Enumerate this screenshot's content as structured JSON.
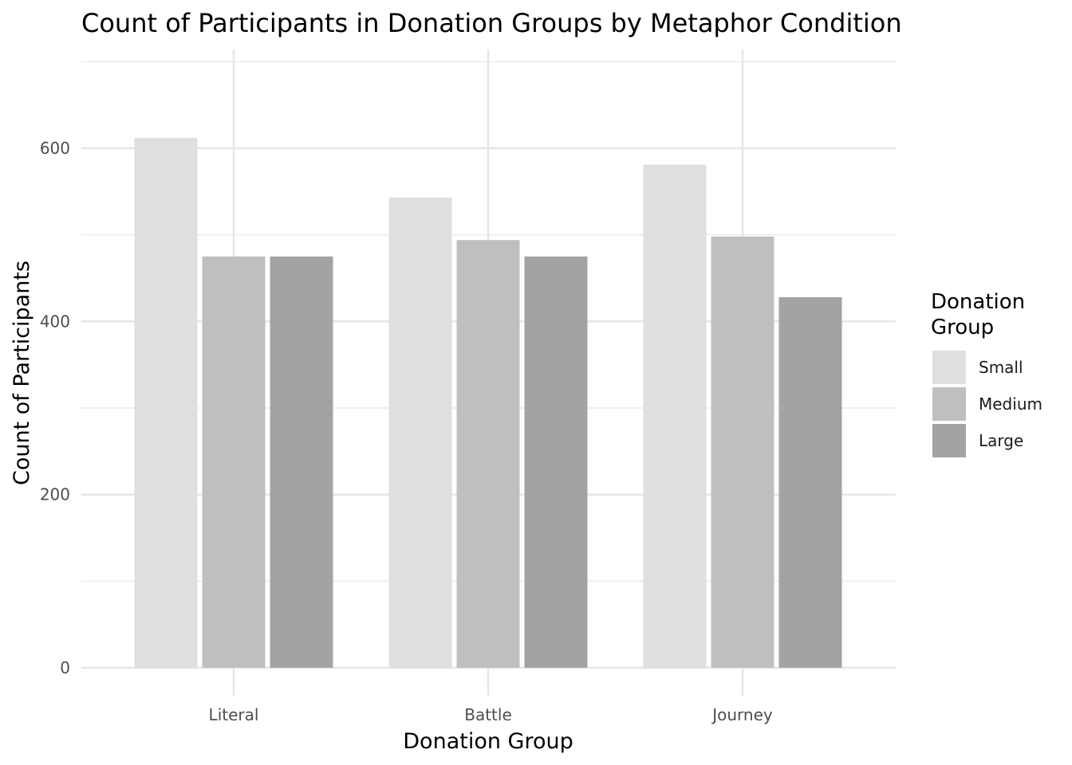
{
  "chart_data": {
    "type": "bar",
    "title": "Count of Participants in Donation Groups by Metaphor Condition",
    "xlabel": "Donation Group",
    "ylabel": "Count of Participants",
    "categories": [
      "Literal",
      "Battle",
      "Journey"
    ],
    "series": [
      {
        "name": "Small",
        "values": [
          612,
          543,
          581
        ]
      },
      {
        "name": "Medium",
        "values": [
          475,
          494,
          498
        ]
      },
      {
        "name": "Large",
        "values": [
          475,
          475,
          428
        ]
      }
    ],
    "ylim": [
      0,
      700
    ],
    "yticks": [
      0,
      200,
      400,
      600
    ],
    "grid": true,
    "legend": {
      "title_lines": [
        "Donation",
        "Group"
      ],
      "position": "right"
    },
    "colors": [
      "#dfdfdf",
      "#bfbfbf",
      "#a3a3a3"
    ]
  }
}
